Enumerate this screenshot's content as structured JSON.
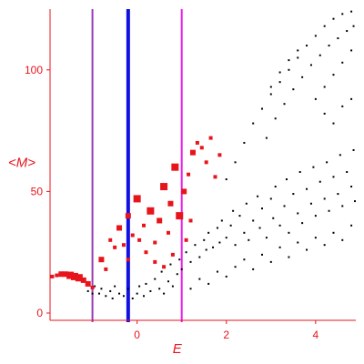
{
  "chart_data": {
    "type": "scatter",
    "title": "",
    "xlabel": "E",
    "ylabel": "<M>",
    "xlim": [
      -1.95,
      4.9
    ],
    "ylim": [
      -3,
      125
    ],
    "grid": false,
    "x_ticks": [
      {
        "value": 0,
        "label": "0"
      },
      {
        "value": 2,
        "label": "2"
      },
      {
        "value": 4,
        "label": "4"
      }
    ],
    "y_ticks": [
      {
        "value": 0,
        "label": "0"
      },
      {
        "value": 50,
        "label": "50"
      },
      {
        "value": 100,
        "label": "100"
      }
    ],
    "colors": {
      "axis": "#e8141c",
      "black_points": "#000000",
      "red_points": "#e8141c",
      "line_purple": "#9a3ab8",
      "line_blue": "#1010e0",
      "line_magenta": "#e81ce8"
    },
    "vertical_lines": [
      {
        "x": -1.0,
        "color": "#9a3ab8",
        "width": 2
      },
      {
        "x": -0.2,
        "color": "#1010e0",
        "width": 4
      },
      {
        "x": 1.0,
        "color": "#e81ce8",
        "width": 2
      }
    ],
    "series": [
      {
        "color": "#000000",
        "marker": "dot",
        "points": [
          [
            -1.1,
            9
          ],
          [
            -1.0,
            8
          ],
          [
            -0.95,
            11
          ],
          [
            -0.85,
            8
          ],
          [
            -0.8,
            10
          ],
          [
            -0.7,
            7
          ],
          [
            -0.6,
            9
          ],
          [
            -0.55,
            6
          ],
          [
            -0.5,
            11
          ],
          [
            -0.4,
            8
          ],
          [
            -0.3,
            7
          ],
          [
            -0.2,
            10
          ],
          [
            -0.1,
            6
          ],
          [
            0.0,
            8
          ],
          [
            0.05,
            11
          ],
          [
            0.15,
            7
          ],
          [
            0.2,
            12
          ],
          [
            0.3,
            9
          ],
          [
            0.4,
            14
          ],
          [
            0.5,
            10
          ],
          [
            0.55,
            17
          ],
          [
            0.6,
            8
          ],
          [
            0.7,
            13
          ],
          [
            0.75,
            20
          ],
          [
            0.8,
            11
          ],
          [
            0.9,
            16
          ],
          [
            0.95,
            22
          ],
          [
            1.0,
            18
          ],
          [
            1.1,
            25
          ],
          [
            1.2,
            21
          ],
          [
            1.3,
            28
          ],
          [
            1.4,
            23
          ],
          [
            1.5,
            30
          ],
          [
            1.55,
            26
          ],
          [
            1.6,
            33
          ],
          [
            1.7,
            27
          ],
          [
            1.8,
            35
          ],
          [
            1.85,
            29
          ],
          [
            1.9,
            38
          ],
          [
            2.0,
            31
          ],
          [
            2.1,
            36
          ],
          [
            2.15,
            42
          ],
          [
            2.2,
            28
          ],
          [
            2.3,
            40
          ],
          [
            2.4,
            33
          ],
          [
            2.45,
            45
          ],
          [
            2.5,
            30
          ],
          [
            2.6,
            38
          ],
          [
            2.7,
            48
          ],
          [
            2.75,
            35
          ],
          [
            2.8,
            43
          ],
          [
            2.9,
            31
          ],
          [
            3.0,
            47
          ],
          [
            3.05,
            39
          ],
          [
            3.1,
            52
          ],
          [
            3.2,
            36
          ],
          [
            3.3,
            44
          ],
          [
            3.35,
            55
          ],
          [
            3.4,
            33
          ],
          [
            3.5,
            49
          ],
          [
            3.6,
            41
          ],
          [
            3.65,
            58
          ],
          [
            3.7,
            37
          ],
          [
            3.8,
            51
          ],
          [
            3.9,
            45
          ],
          [
            3.95,
            60
          ],
          [
            4.0,
            40
          ],
          [
            4.1,
            54
          ],
          [
            4.2,
            47
          ],
          [
            4.25,
            62
          ],
          [
            4.3,
            42
          ],
          [
            4.4,
            56
          ],
          [
            4.5,
            49
          ],
          [
            4.55,
            65
          ],
          [
            4.6,
            44
          ],
          [
            4.7,
            58
          ],
          [
            4.8,
            52
          ],
          [
            4.85,
            67
          ],
          [
            4.88,
            46
          ],
          [
            1.2,
            10
          ],
          [
            1.4,
            14
          ],
          [
            1.6,
            12
          ],
          [
            1.8,
            17
          ],
          [
            2.0,
            15
          ],
          [
            2.2,
            19
          ],
          [
            2.4,
            22
          ],
          [
            2.6,
            18
          ],
          [
            2.8,
            24
          ],
          [
            3.0,
            21
          ],
          [
            3.2,
            27
          ],
          [
            3.4,
            23
          ],
          [
            3.6,
            29
          ],
          [
            3.8,
            26
          ],
          [
            4.0,
            31
          ],
          [
            4.2,
            28
          ],
          [
            4.4,
            33
          ],
          [
            4.6,
            30
          ],
          [
            4.8,
            36
          ],
          [
            2.0,
            55
          ],
          [
            2.2,
            62
          ],
          [
            2.4,
            70
          ],
          [
            2.6,
            78
          ],
          [
            2.8,
            84
          ],
          [
            3.0,
            90
          ],
          [
            3.2,
            95
          ],
          [
            3.4,
            100
          ],
          [
            3.6,
            105
          ],
          [
            3.8,
            110
          ],
          [
            4.0,
            114
          ],
          [
            4.2,
            118
          ],
          [
            4.4,
            121
          ],
          [
            4.6,
            123
          ],
          [
            4.8,
            124
          ],
          [
            2.9,
            72
          ],
          [
            3.1,
            80
          ],
          [
            3.3,
            86
          ],
          [
            3.5,
            92
          ],
          [
            3.7,
            97
          ],
          [
            3.9,
            102
          ],
          [
            4.1,
            106
          ],
          [
            4.3,
            110
          ],
          [
            4.5,
            113
          ],
          [
            4.7,
            116
          ],
          [
            4.85,
            118
          ],
          [
            3.0,
            93
          ],
          [
            3.2,
            99
          ],
          [
            3.4,
            104
          ],
          [
            3.6,
            108
          ],
          [
            4.2,
            93
          ],
          [
            4.4,
            98
          ],
          [
            4.6,
            103
          ],
          [
            4.8,
            108
          ],
          [
            4.0,
            88
          ],
          [
            4.2,
            82
          ],
          [
            4.4,
            78
          ],
          [
            4.6,
            85
          ],
          [
            4.8,
            88
          ]
        ]
      },
      {
        "color": "#e8141c",
        "marker": "square",
        "points": [
          [
            -1.9,
            15,
            2
          ],
          [
            -1.8,
            15.5,
            2
          ],
          [
            -1.7,
            16,
            3
          ],
          [
            -1.6,
            16,
            3
          ],
          [
            -1.5,
            15.5,
            4
          ],
          [
            -1.4,
            15,
            4
          ],
          [
            -1.3,
            14.5,
            4
          ],
          [
            -1.2,
            13.5,
            3
          ],
          [
            -1.1,
            12,
            3
          ],
          [
            -1.0,
            10.5,
            2
          ],
          [
            -0.8,
            22,
            3
          ],
          [
            -0.7,
            18,
            2
          ],
          [
            -0.6,
            30,
            2
          ],
          [
            -0.5,
            27,
            2
          ],
          [
            -0.4,
            35,
            3
          ],
          [
            -0.3,
            28,
            2
          ],
          [
            -0.2,
            40,
            3
          ],
          [
            -0.1,
            32,
            2
          ],
          [
            0.0,
            47,
            4
          ],
          [
            0.05,
            30,
            2
          ],
          [
            0.15,
            36,
            2
          ],
          [
            0.3,
            42,
            4
          ],
          [
            0.4,
            29,
            2
          ],
          [
            0.5,
            38,
            3
          ],
          [
            0.6,
            52,
            4
          ],
          [
            0.7,
            33,
            2
          ],
          [
            0.75,
            45,
            3
          ],
          [
            0.85,
            60,
            4
          ],
          [
            0.95,
            40,
            4
          ],
          [
            1.05,
            50,
            3
          ],
          [
            1.15,
            57,
            2
          ],
          [
            1.25,
            66,
            3
          ],
          [
            1.35,
            70,
            2
          ],
          [
            1.45,
            68,
            2
          ],
          [
            1.55,
            62,
            2
          ],
          [
            1.65,
            72,
            2
          ],
          [
            1.75,
            56,
            2
          ],
          [
            1.85,
            65,
            2
          ],
          [
            1.2,
            38,
            2
          ],
          [
            1.1,
            30,
            2
          ],
          [
            0.8,
            24,
            2
          ],
          [
            0.4,
            21,
            2
          ],
          [
            0.6,
            19,
            2
          ],
          [
            0.2,
            25,
            2
          ],
          [
            -0.2,
            22,
            2
          ]
        ]
      }
    ]
  }
}
